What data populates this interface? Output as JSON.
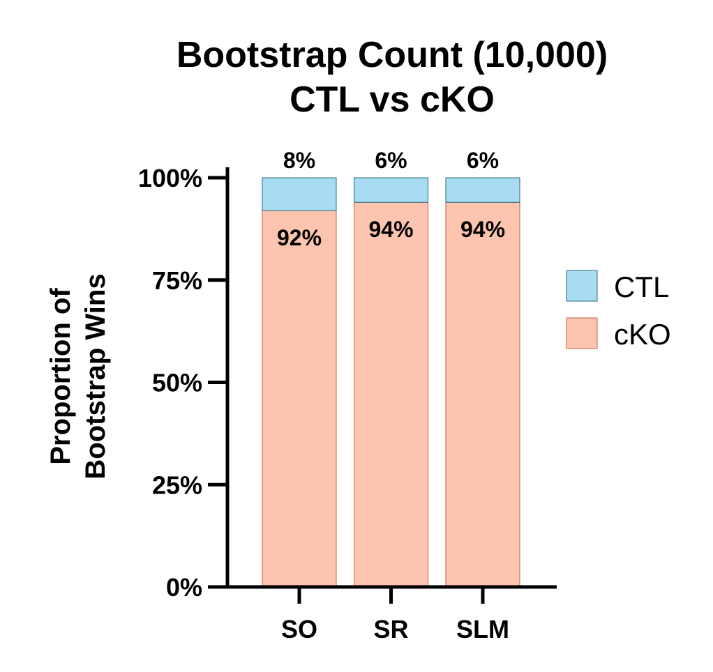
{
  "chart_data": {
    "type": "bar",
    "stacked": true,
    "title_line1": "Bootstrap Count (10,000)",
    "title_line2": "CTL vs cKO",
    "ylabel_line1": "Proportion of",
    "ylabel_line2": "Bootstrap Wins",
    "xlabel": "",
    "ylim": [
      0,
      100
    ],
    "yticks": [
      "0%",
      "25%",
      "50%",
      "75%",
      "100%"
    ],
    "categories": [
      "SO",
      "SR",
      "SLM"
    ],
    "series": [
      {
        "name": "cKO",
        "values": [
          92,
          94,
          94
        ],
        "labels": [
          "92%",
          "94%",
          "94%"
        ],
        "color": "#fdc5b0",
        "stroke": "#c0603c"
      },
      {
        "name": "CTL",
        "values": [
          8,
          6,
          6
        ],
        "labels": [
          "8%",
          "6%",
          "6%"
        ],
        "color": "#a7dcf2",
        "stroke": "#2a6a80"
      }
    ],
    "legend_position": "right",
    "grid": false
  }
}
